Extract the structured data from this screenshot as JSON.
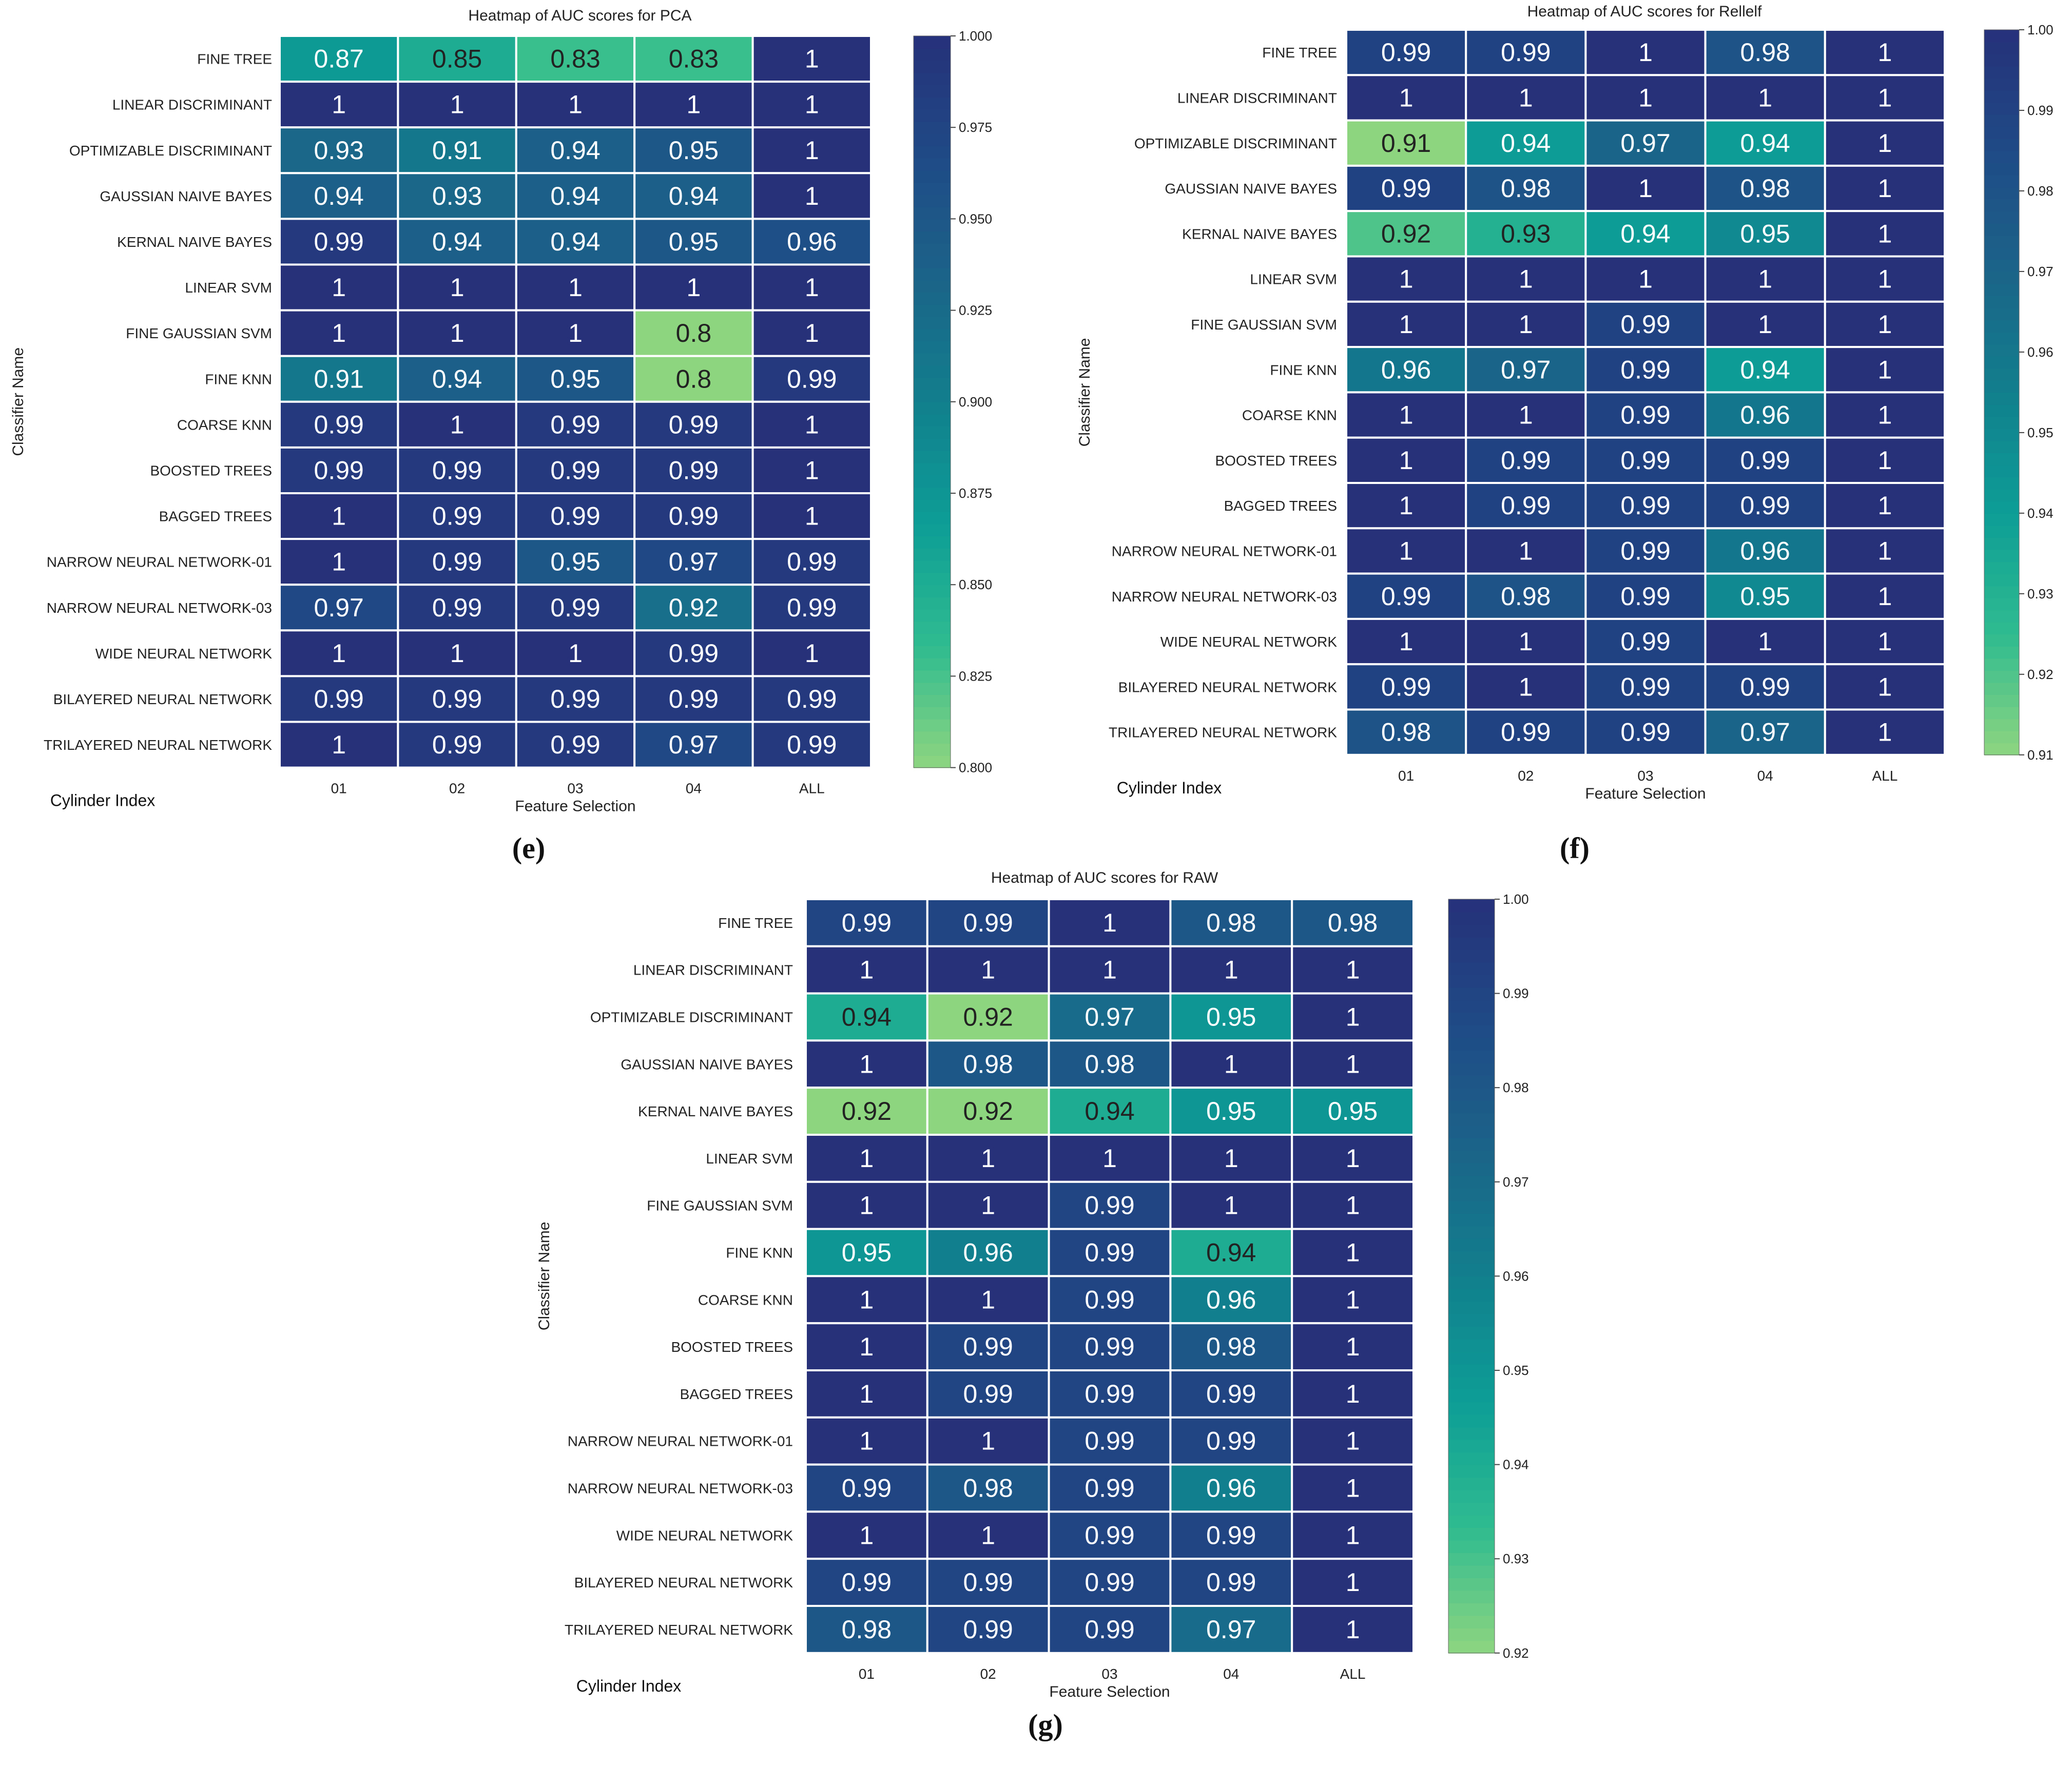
{
  "chart_data": [
    {
      "type": "heatmap",
      "title": "Heatmap of AUC scores for PCA",
      "panel_label": "(e)",
      "xlabel": "Feature Selection",
      "ylabel": "Classifier Name",
      "corner_label": "Cylinder Index",
      "x": [
        "01",
        "02",
        "03",
        "04",
        "ALL"
      ],
      "y": [
        "FINE TREE",
        "LINEAR DISCRIMINANT",
        "OPTIMIZABLE DISCRIMINANT",
        "GAUSSIAN NAIVE BAYES",
        "KERNAL NAIVE BAYES",
        "LINEAR SVM",
        "FINE GAUSSIAN SVM",
        "FINE KNN",
        "COARSE KNN",
        "BOOSTED TREES",
        "BAGGED TREES",
        "NARROW NEURAL NETWORK-01",
        "NARROW NEURAL NETWORK-03",
        "WIDE NEURAL NETWORK",
        "BILAYERED NEURAL NETWORK",
        "TRILAYERED NEURAL NETWORK"
      ],
      "values": [
        [
          0.87,
          0.85,
          0.83,
          0.83,
          1
        ],
        [
          1,
          1,
          1,
          1,
          1
        ],
        [
          0.93,
          0.91,
          0.94,
          0.95,
          1
        ],
        [
          0.94,
          0.93,
          0.94,
          0.94,
          1
        ],
        [
          0.99,
          0.94,
          0.94,
          0.95,
          0.96
        ],
        [
          1,
          1,
          1,
          1,
          1
        ],
        [
          1,
          1,
          1,
          0.8,
          1
        ],
        [
          0.91,
          0.94,
          0.95,
          0.8,
          0.99
        ],
        [
          0.99,
          1,
          0.99,
          0.99,
          1
        ],
        [
          0.99,
          0.99,
          0.99,
          0.99,
          1
        ],
        [
          1,
          0.99,
          0.99,
          0.99,
          1
        ],
        [
          1,
          0.99,
          0.95,
          0.97,
          0.99
        ],
        [
          0.97,
          0.99,
          0.99,
          0.92,
          0.99
        ],
        [
          1,
          1,
          1,
          0.99,
          1
        ],
        [
          0.99,
          0.99,
          0.99,
          0.99,
          0.99
        ],
        [
          1,
          0.99,
          0.99,
          0.97,
          0.99
        ]
      ],
      "colorbar": {
        "min": 0.8,
        "max": 1.0,
        "ticks": [
          "0.800",
          "0.825",
          "0.850",
          "0.875",
          "0.900",
          "0.925",
          "0.950",
          "0.975",
          "1.000"
        ]
      }
    },
    {
      "type": "heatmap",
      "title": "Heatmap of AUC scores for Rellelf",
      "panel_label": "(f)",
      "xlabel": "Feature Selection",
      "ylabel": "Classifier Name",
      "corner_label": "Cylinder Index",
      "x": [
        "01",
        "02",
        "03",
        "04",
        "ALL"
      ],
      "y": [
        "FINE TREE",
        "LINEAR DISCRIMINANT",
        "OPTIMIZABLE DISCRIMINANT",
        "GAUSSIAN NAIVE BAYES",
        "KERNAL NAIVE BAYES",
        "LINEAR SVM",
        "FINE GAUSSIAN SVM",
        "FINE KNN",
        "COARSE KNN",
        "BOOSTED TREES",
        "BAGGED TREES",
        "NARROW NEURAL NETWORK-01",
        "NARROW NEURAL NETWORK-03",
        "WIDE NEURAL NETWORK",
        "BILAYERED NEURAL NETWORK",
        "TRILAYERED NEURAL NETWORK"
      ],
      "values": [
        [
          0.99,
          0.99,
          1,
          0.98,
          1
        ],
        [
          1,
          1,
          1,
          1,
          1
        ],
        [
          0.91,
          0.94,
          0.97,
          0.94,
          1
        ],
        [
          0.99,
          0.98,
          1,
          0.98,
          1
        ],
        [
          0.92,
          0.93,
          0.94,
          0.95,
          1
        ],
        [
          1,
          1,
          1,
          1,
          1
        ],
        [
          1,
          1,
          0.99,
          1,
          1
        ],
        [
          0.96,
          0.97,
          0.99,
          0.94,
          1
        ],
        [
          1,
          1,
          0.99,
          0.96,
          1
        ],
        [
          1,
          0.99,
          0.99,
          0.99,
          1
        ],
        [
          1,
          0.99,
          0.99,
          0.99,
          1
        ],
        [
          1,
          1,
          0.99,
          0.96,
          1
        ],
        [
          0.99,
          0.98,
          0.99,
          0.95,
          1
        ],
        [
          1,
          1,
          0.99,
          1,
          1
        ],
        [
          0.99,
          1,
          0.99,
          0.99,
          1
        ],
        [
          0.98,
          0.99,
          0.99,
          0.97,
          1
        ]
      ],
      "colorbar": {
        "min": 0.91,
        "max": 1.0,
        "ticks": [
          "0.91",
          "0.92",
          "0.93",
          "0.94",
          "0.95",
          "0.96",
          "0.97",
          "0.98",
          "0.99",
          "1.00"
        ]
      }
    },
    {
      "type": "heatmap",
      "title": "Heatmap of AUC scores for RAW",
      "panel_label": "(g)",
      "xlabel": "Feature Selection",
      "ylabel": "Classifier Name",
      "corner_label": "Cylinder Index",
      "x": [
        "01",
        "02",
        "03",
        "04",
        "ALL"
      ],
      "y": [
        "FINE TREE",
        "LINEAR DISCRIMINANT",
        "OPTIMIZABLE DISCRIMINANT",
        "GAUSSIAN NAIVE BAYES",
        "KERNAL NAIVE BAYES",
        "LINEAR SVM",
        "FINE GAUSSIAN SVM",
        "FINE KNN",
        "COARSE KNN",
        "BOOSTED TREES",
        "BAGGED TREES",
        "NARROW NEURAL NETWORK-01",
        "NARROW NEURAL NETWORK-03",
        "WIDE NEURAL NETWORK",
        "BILAYERED NEURAL NETWORK",
        "TRILAYERED NEURAL NETWORK"
      ],
      "values": [
        [
          0.99,
          0.99,
          1,
          0.98,
          0.98
        ],
        [
          1,
          1,
          1,
          1,
          1
        ],
        [
          0.94,
          0.92,
          0.97,
          0.95,
          1
        ],
        [
          1,
          0.98,
          0.98,
          1,
          1
        ],
        [
          0.92,
          0.92,
          0.94,
          0.95,
          0.95
        ],
        [
          1,
          1,
          1,
          1,
          1
        ],
        [
          1,
          1,
          0.99,
          1,
          1
        ],
        [
          0.95,
          0.96,
          0.99,
          0.94,
          1
        ],
        [
          1,
          1,
          0.99,
          0.96,
          1
        ],
        [
          1,
          0.99,
          0.99,
          0.98,
          1
        ],
        [
          1,
          0.99,
          0.99,
          0.99,
          1
        ],
        [
          1,
          1,
          0.99,
          0.99,
          1
        ],
        [
          0.99,
          0.98,
          0.99,
          0.96,
          1
        ],
        [
          1,
          1,
          0.99,
          0.99,
          1
        ],
        [
          0.99,
          0.99,
          0.99,
          0.99,
          1
        ],
        [
          0.98,
          0.99,
          0.99,
          0.97,
          1
        ]
      ],
      "colorbar": {
        "min": 0.92,
        "max": 1.0,
        "ticks": [
          "0.92",
          "0.93",
          "0.94",
          "0.95",
          "0.96",
          "0.97",
          "0.98",
          "0.99",
          "1.00"
        ]
      }
    }
  ],
  "colormap": [
    "#8ed57f",
    "#2fbb90",
    "#0d9d96",
    "#117f8d",
    "#1b6489",
    "#1f4a86",
    "#26317a"
  ]
}
